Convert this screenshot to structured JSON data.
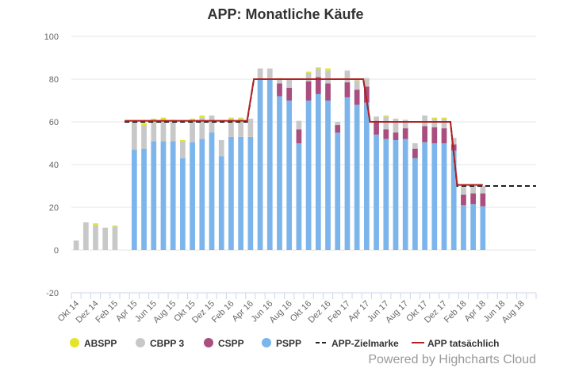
{
  "chart_data": {
    "type": "bar",
    "title": "APP: Monatliche Käufe",
    "credits": "Powered by Highcharts Cloud",
    "ylim": [
      -20,
      100
    ],
    "yticks": [
      -20,
      0,
      20,
      40,
      60,
      80,
      100
    ],
    "months_start": "Okt 14",
    "month_count": 48,
    "x_tick_labels": [
      "Okt 14",
      "Dez 14",
      "Feb 15",
      "Apr 15",
      "Jun 15",
      "Aug 15",
      "Okt 15",
      "Dez 15",
      "Feb 16",
      "Apr 16",
      "Jun 16",
      "Aug 16",
      "Okt 16",
      "Dez 16",
      "Feb 17",
      "Apr 17",
      "Jun 17",
      "Aug 17",
      "Okt 17",
      "Dez 17",
      "Feb 18",
      "Apr 18",
      "Jun 18",
      "Aug 18"
    ],
    "legend_position": "bottom",
    "series": [
      {
        "name": "PSPP",
        "color": "#7cb5ec",
        "kind": "stacked-bar",
        "values": [
          0,
          0,
          0,
          0,
          0,
          0,
          47,
          47.5,
          51,
          51,
          51,
          43,
          50.5,
          52,
          55,
          44,
          53,
          53,
          53,
          80,
          80,
          72,
          70,
          50,
          70,
          73,
          70,
          55,
          71.5,
          68,
          69,
          54,
          52,
          51.5,
          52,
          43,
          50.5,
          50,
          50,
          46.5,
          21,
          21.5,
          20.5
        ]
      },
      {
        "name": "CSPP",
        "color": "#a94e7f",
        "kind": "stacked-bar",
        "values": [
          0,
          0,
          0,
          0,
          0,
          0,
          0,
          0,
          0,
          0,
          0,
          0,
          0,
          0,
          0,
          0,
          0,
          0,
          0,
          0,
          0,
          6,
          6,
          6.5,
          9,
          8,
          8,
          3.5,
          7,
          7,
          7.5,
          6.5,
          4.5,
          3.5,
          5,
          4.5,
          7.5,
          7.5,
          7,
          3,
          5,
          5,
          6
        ]
      },
      {
        "name": "CBPP 3",
        "color": "#c8c8c8",
        "kind": "stacked-bar",
        "values": [
          4.5,
          13,
          11.5,
          10.5,
          11,
          0,
          13,
          11,
          9.5,
          9.5,
          9.5,
          8,
          9.5,
          10,
          8,
          7.5,
          8.5,
          8.5,
          8.5,
          5,
          5,
          2,
          4,
          4,
          4,
          4,
          6,
          1.5,
          5.5,
          4.5,
          4,
          2,
          6,
          6.5,
          4,
          2.5,
          5,
          4,
          4.5,
          3,
          3.5,
          3.5,
          3.5
        ]
      },
      {
        "name": "ABSPP",
        "color": "#e4e42a",
        "kind": "stacked-bar",
        "values": [
          0,
          0,
          1,
          0,
          0.5,
          0,
          0.5,
          1,
          1,
          1.5,
          0.5,
          0.5,
          1.5,
          1,
          0,
          0,
          0.5,
          0.5,
          0,
          0,
          0,
          0.5,
          0,
          0,
          0.5,
          0.5,
          1,
          0,
          0,
          0.5,
          0,
          0,
          0.5,
          0,
          0,
          0,
          0,
          0.5,
          0.5,
          0,
          0.5,
          0,
          0
        ]
      },
      {
        "name": "APP-Zielmarke",
        "color": "#222222",
        "kind": "step-line-dashed",
        "segments": [
          {
            "from_month": 5.5,
            "to_month": 18.5,
            "value": 60
          },
          {
            "from_month": 18.5,
            "to_month": 30.5,
            "value": 80
          },
          {
            "from_month": 30.5,
            "to_month": 39.5,
            "value": 60
          },
          {
            "from_month": 39.5,
            "to_month": 48,
            "value": 30
          }
        ]
      },
      {
        "name": "APP tatsächlich",
        "color": "#b22222",
        "kind": "step-line",
        "segments": [
          {
            "from_month": 5.5,
            "to_month": 18.5,
            "value": 60.5
          },
          {
            "from_month": 18.5,
            "to_month": 30.5,
            "value": 80
          },
          {
            "from_month": 30.5,
            "to_month": 39.5,
            "value": 60
          },
          {
            "from_month": 39.5,
            "to_month": 42.5,
            "value": 30.5
          }
        ]
      }
    ],
    "legend": [
      {
        "name": "ABSPP",
        "marker": "circle",
        "color": "#e4e42a"
      },
      {
        "name": "CBPP 3",
        "marker": "circle",
        "color": "#c8c8c8"
      },
      {
        "name": "CSPP",
        "marker": "circle",
        "color": "#a94e7f"
      },
      {
        "name": "PSPP",
        "marker": "circle",
        "color": "#7cb5ec"
      },
      {
        "name": "APP-Zielmarke",
        "marker": "dash",
        "color": "#222222"
      },
      {
        "name": "APP tatsächlich",
        "marker": "line",
        "color": "#b22222"
      }
    ]
  }
}
